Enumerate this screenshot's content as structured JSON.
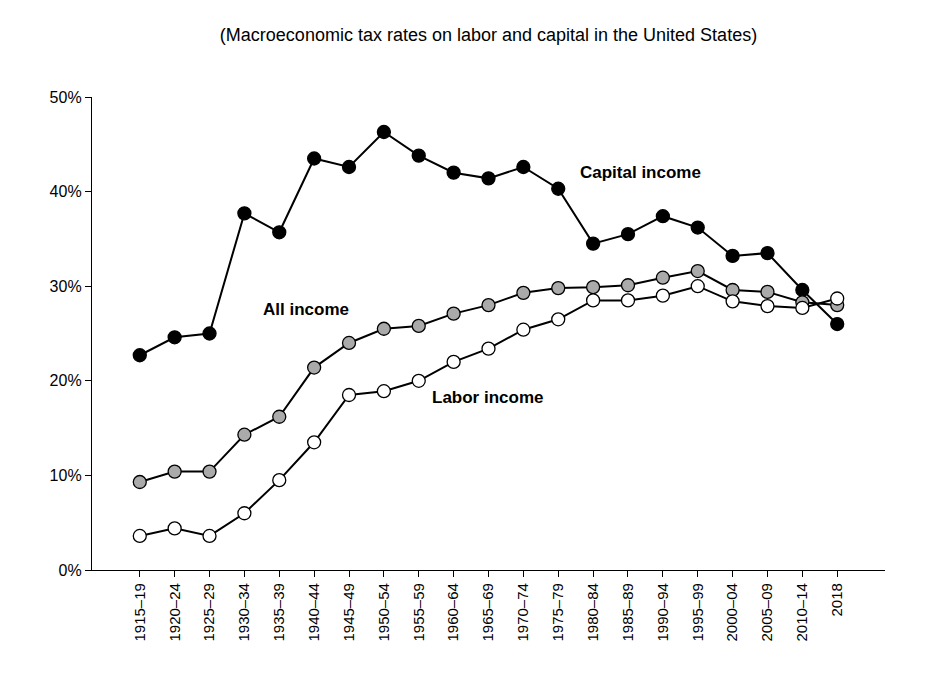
{
  "chart_data": {
    "type": "line",
    "title": "(Macroeconomic tax rates on labor and capital in the United States)",
    "categories": [
      "1915–19",
      "1920–24",
      "1925–29",
      "1930–34",
      "1935–39",
      "1940–44",
      "1945–49",
      "1950–54",
      "1955–59",
      "1960–64",
      "1965–69",
      "1970–74",
      "1975–79",
      "1980–84",
      "1985–89",
      "1990–94",
      "1995–99",
      "2000–04",
      "2005–09",
      "2010–14",
      "2018"
    ],
    "series": [
      {
        "name": "Capital income",
        "color": "#000000",
        "marker": "circle",
        "values": [
          22.7,
          24.6,
          25.0,
          37.7,
          35.7,
          43.5,
          42.6,
          46.3,
          43.8,
          42.0,
          41.4,
          42.6,
          40.3,
          34.5,
          35.5,
          37.4,
          36.2,
          33.2,
          33.5,
          29.6,
          26.0
        ]
      },
      {
        "name": "All income",
        "color": "#aaaaaa",
        "marker": "circle",
        "values": [
          9.3,
          10.4,
          10.4,
          14.3,
          16.2,
          21.4,
          24.0,
          25.5,
          25.8,
          27.1,
          28.0,
          29.3,
          29.8,
          29.9,
          30.1,
          30.9,
          31.6,
          29.6,
          29.4,
          28.3,
          28.0
        ]
      },
      {
        "name": "Labor income",
        "color": "#ffffff",
        "marker": "circle",
        "values": [
          3.6,
          4.4,
          3.6,
          6.0,
          9.5,
          13.5,
          18.5,
          18.9,
          20.0,
          22.0,
          23.4,
          25.4,
          26.5,
          28.5,
          28.5,
          29.0,
          30.0,
          28.4,
          27.9,
          27.7,
          28.7
        ]
      }
    ],
    "ylim": [
      0,
      50
    ],
    "yticks": [
      {
        "value": 0,
        "label": "0%"
      },
      {
        "value": 10,
        "label": "10%"
      },
      {
        "value": 20,
        "label": "20%"
      },
      {
        "value": 30,
        "label": "30%"
      },
      {
        "value": 40,
        "label": "40%"
      },
      {
        "value": 50,
        "label": "50%"
      }
    ],
    "grid": false
  }
}
